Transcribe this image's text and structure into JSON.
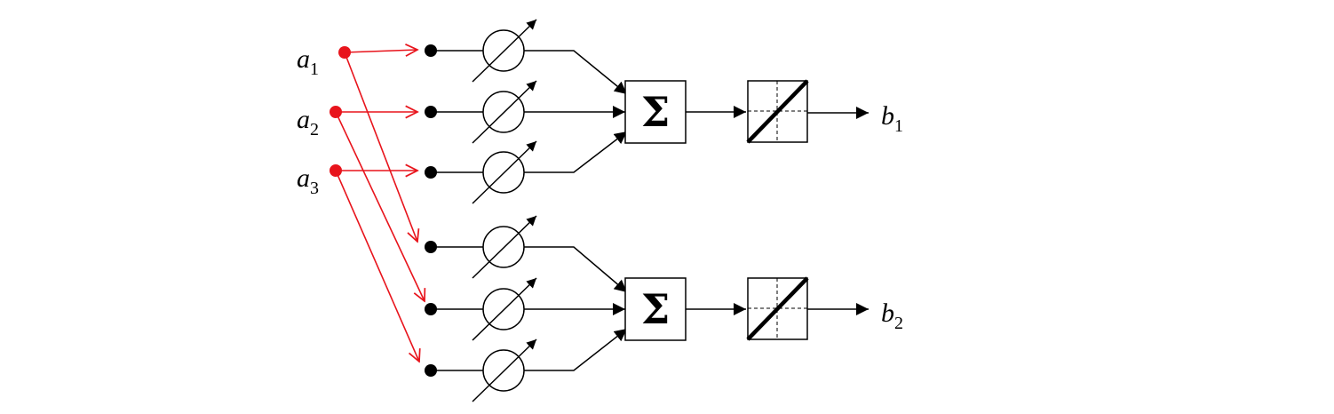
{
  "inputs": [
    {
      "var": "a",
      "sub": "1"
    },
    {
      "var": "a",
      "sub": "2"
    },
    {
      "var": "a",
      "sub": "3"
    }
  ],
  "outputs": [
    {
      "var": "b",
      "sub": "1"
    },
    {
      "var": "b",
      "sub": "2"
    }
  ],
  "summer_symbol": "Σ",
  "colors": {
    "input_nodes": "#e8141c",
    "distribution_arrows": "#e8141c",
    "lines": "#000000"
  },
  "icons": {
    "weight": "variable-weight-icon",
    "summer": "summation-icon",
    "activation": "linear-activation-icon"
  }
}
